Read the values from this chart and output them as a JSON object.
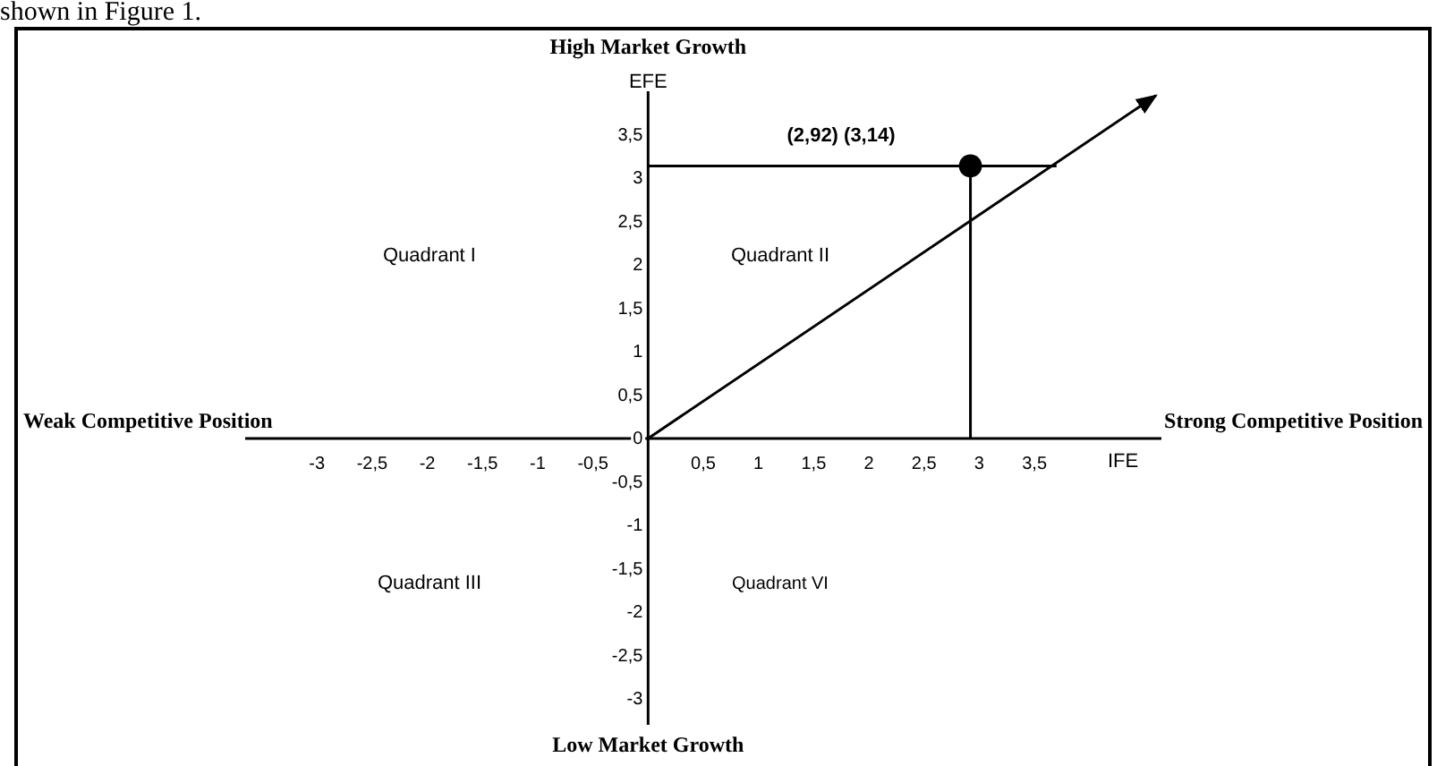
{
  "chart_data": {
    "type": "scatter",
    "xlabel": "IFE",
    "ylabel": "EFE",
    "xlim": [
      -3.65,
      4.65
    ],
    "ylim": [
      -3.3,
      4.0
    ],
    "xticks": [
      -3,
      {
        "value": -2.5,
        "label": "-2,5"
      },
      -2,
      {
        "value": -1.5,
        "label": "-1,5"
      },
      -1,
      {
        "value": -0.5,
        "label": "-0,5"
      },
      {
        "value": 0.5,
        "label": "0,5"
      },
      1,
      {
        "value": 1.5,
        "label": "1,5"
      },
      2,
      {
        "value": 2.5,
        "label": "2,5"
      },
      3,
      {
        "value": 3.5,
        "label": "3,5"
      }
    ],
    "yticks": [
      -3,
      {
        "value": -2.5,
        "label": "-2,5"
      },
      -2,
      {
        "value": -1.5,
        "label": "-1,5"
      },
      -1,
      {
        "value": -0.5,
        "label": "-0,5"
      },
      0,
      {
        "value": 0.5,
        "label": "0,5"
      },
      1,
      {
        "value": 1.5,
        "label": "1,5"
      },
      2,
      {
        "value": 2.5,
        "label": "2,5"
      },
      3,
      {
        "value": 3.5,
        "label": "3,5"
      }
    ],
    "grid": false,
    "series": [
      {
        "type": "line",
        "color": "#000000",
        "x": [
          0,
          4.6
        ],
        "values": [
          0,
          3.95
        ]
      },
      {
        "type": "line",
        "color": "#000000",
        "x": [
          0,
          3.7
        ],
        "values": [
          3.14,
          3.14
        ]
      },
      {
        "type": "line",
        "color": "#000000",
        "x": [
          2.92,
          2.92
        ],
        "values": [
          3.14,
          0
        ]
      },
      {
        "type": "scatter",
        "color": "#000000",
        "x": [
          2.92
        ],
        "values": [
          3.14
        ],
        "marker": "circle"
      }
    ],
    "annotations": [
      "shown in Figure 1.",
      "High Market Growth",
      "Low Market Growth",
      "Weak Competitive Position",
      "Strong Competitive Position",
      "Quadrant I",
      "Quadrant II",
      "Quadrant III",
      "Quadrant VI",
      "(2,92) (3,14)"
    ]
  }
}
